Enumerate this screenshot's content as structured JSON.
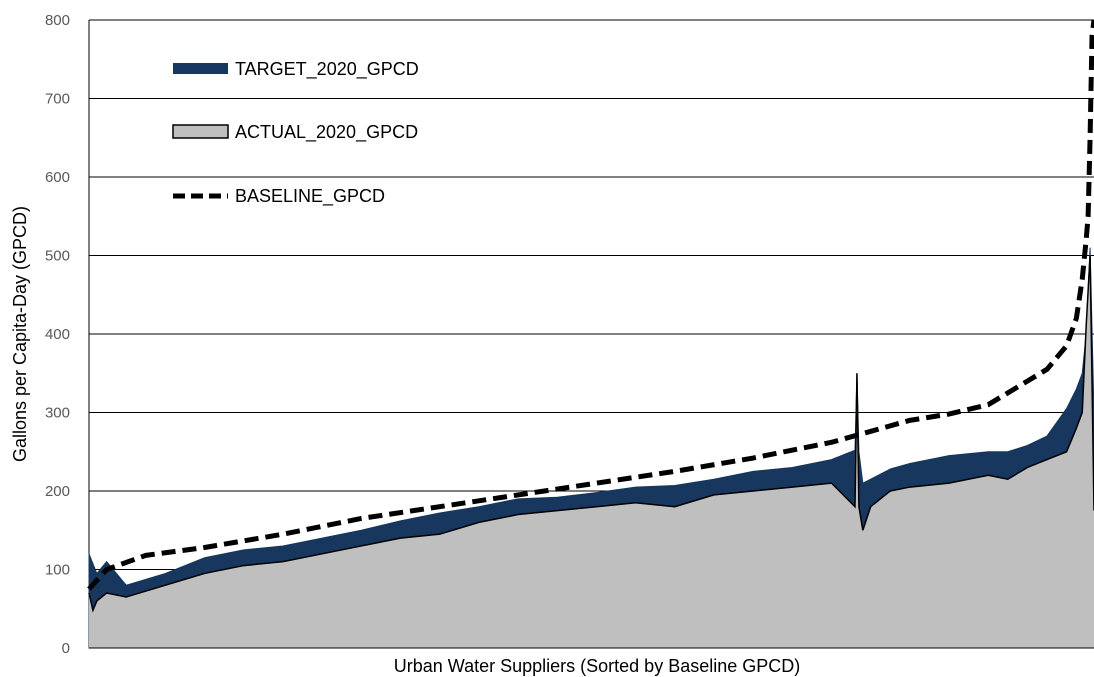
{
  "chart_data": {
    "type": "area",
    "title": "",
    "xlabel": "Urban Water Suppliers (Sorted by Baseline GPCD)",
    "ylabel": "Gallons per Capita-Day (GPCD)",
    "ylim": [
      0,
      800
    ],
    "yticks": [
      "0",
      "100",
      "200",
      "300",
      "400",
      "500",
      "600",
      "700",
      "800"
    ],
    "grid": true,
    "legend_position": "top-left",
    "colors": {
      "target": "#17375e",
      "actual": "#bfbfbf",
      "baseline": "#000000",
      "actual_edge": "#000000"
    },
    "series": [
      {
        "name": "TARGET_2020_GPCD",
        "x": [
          1,
          5,
          10,
          20,
          40,
          60,
          80,
          100,
          120,
          140,
          160,
          180,
          200,
          220,
          240,
          260,
          280,
          300,
          320,
          340,
          360,
          380,
          392,
          393,
          394,
          396,
          400,
          410,
          420,
          440,
          460,
          470,
          480,
          490,
          500,
          505,
          508,
          510,
          512,
          514
        ],
        "y": [
          120,
          95,
          110,
          80,
          95,
          115,
          125,
          130,
          140,
          150,
          162,
          172,
          180,
          190,
          192,
          198,
          205,
          207,
          215,
          225,
          230,
          240,
          252,
          350,
          250,
          210,
          215,
          228,
          235,
          245,
          250,
          250,
          258,
          270,
          305,
          330,
          350,
          400,
          510,
          300
        ]
      },
      {
        "name": "ACTUAL_2020_GPCD",
        "x": [
          1,
          3,
          5,
          10,
          20,
          40,
          60,
          80,
          100,
          120,
          140,
          160,
          180,
          200,
          220,
          240,
          260,
          280,
          300,
          320,
          340,
          360,
          380,
          392,
          393,
          394,
          396,
          400,
          410,
          420,
          440,
          460,
          470,
          480,
          490,
          500,
          505,
          508,
          510,
          512,
          514
        ],
        "y": [
          70,
          48,
          60,
          70,
          65,
          80,
          95,
          105,
          110,
          120,
          130,
          140,
          145,
          160,
          170,
          175,
          180,
          185,
          180,
          195,
          200,
          205,
          210,
          180,
          350,
          180,
          150,
          180,
          200,
          205,
          210,
          220,
          215,
          230,
          240,
          250,
          280,
          300,
          410,
          500,
          175
        ]
      },
      {
        "name": "BASELINE_GPCD",
        "x": [
          1,
          10,
          30,
          60,
          100,
          140,
          180,
          220,
          260,
          300,
          340,
          380,
          420,
          440,
          460,
          480,
          490,
          500,
          505,
          508,
          510,
          511,
          512,
          513,
          514
        ],
        "y": [
          75,
          100,
          118,
          128,
          145,
          165,
          180,
          195,
          210,
          225,
          242,
          262,
          290,
          298,
          310,
          340,
          355,
          385,
          420,
          470,
          520,
          550,
          650,
          780,
          800
        ]
      }
    ],
    "xlim": [
      1,
      514
    ]
  }
}
